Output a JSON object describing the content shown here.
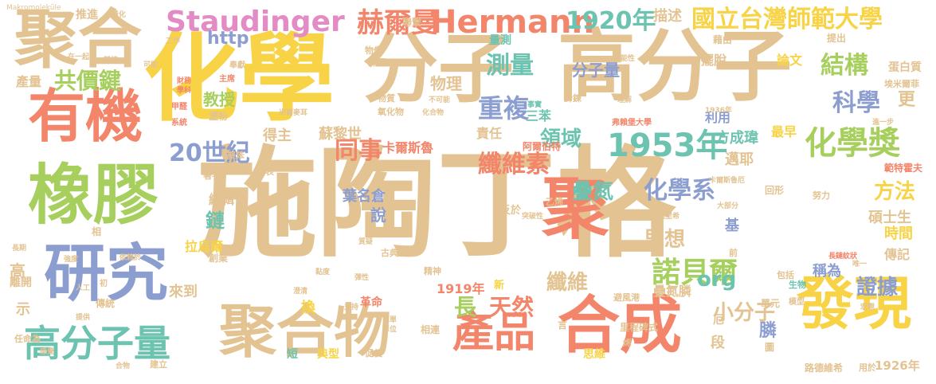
{
  "palette": {
    "tan": "#e3c392",
    "yellow": "#f7d345",
    "coral": "#f2856a",
    "green": "#a6cf5d",
    "blue": "#8c9ed0",
    "teal": "#6cc3b0",
    "pink": "#e38bc4",
    "gray": "#aaaaaa"
  },
  "words": [
    {
      "text": "施陶丁格",
      "color": "tan"
    },
    {
      "text": "化學",
      "color": "yellow"
    },
    {
      "text": "分子",
      "color": "tan"
    },
    {
      "text": "高分子",
      "color": "tan"
    },
    {
      "text": "聚合",
      "color": "tan"
    },
    {
      "text": "有機",
      "color": "coral"
    },
    {
      "text": "橡膠",
      "color": "green"
    },
    {
      "text": "研究",
      "color": "blue"
    },
    {
      "text": "聚",
      "color": "coral"
    },
    {
      "text": "高分子量",
      "color": "teal"
    },
    {
      "text": "聚合物",
      "color": "tan"
    },
    {
      "text": "合成",
      "color": "coral"
    },
    {
      "text": "發現",
      "color": "yellow"
    },
    {
      "text": "產品",
      "color": "coral"
    },
    {
      "text": "Staudinger",
      "color": "pink"
    },
    {
      "text": "赫爾曼",
      "color": "coral"
    },
    {
      "text": "Hermann",
      "color": "coral"
    },
    {
      "text": "1920年",
      "color": "teal"
    },
    {
      "text": "國立台灣師範大學",
      "color": "yellow"
    },
    {
      "text": "1953年",
      "color": "teal"
    },
    {
      "text": "化學獎",
      "color": "green"
    },
    {
      "text": "結構",
      "color": "green"
    },
    {
      "text": "科學",
      "color": "blue"
    },
    {
      "text": "諾貝爾",
      "color": "green"
    },
    {
      "text": "測量",
      "color": "teal"
    },
    {
      "text": "重複",
      "color": "blue"
    },
    {
      "text": "領域",
      "color": "teal"
    },
    {
      "text": "纖維素",
      "color": "coral"
    },
    {
      "text": "同事",
      "color": "coral"
    },
    {
      "text": "20世紀",
      "color": "blue"
    },
    {
      "text": "共價鍵",
      "color": "green"
    },
    {
      "text": "化學系",
      "color": "blue"
    },
    {
      "text": "疊氮",
      "color": "teal"
    },
    {
      "text": "思想",
      "color": "tan"
    },
    {
      "text": "天然",
      "color": "coral"
    },
    {
      "text": "長",
      "color": "green"
    },
    {
      "text": "小分子",
      "color": "tan"
    },
    {
      "text": "證據",
      "color": "blue"
    },
    {
      "text": "方法",
      "color": "yellow"
    },
    {
      "text": "org",
      "color": "teal"
    },
    {
      "text": "http",
      "color": "blue"
    },
    {
      "text": "描述",
      "color": "tan"
    },
    {
      "text": "物理",
      "color": "tan"
    },
    {
      "text": "分子量",
      "color": "blue"
    },
    {
      "text": "教授",
      "color": "green"
    },
    {
      "text": "產量",
      "color": "tan"
    },
    {
      "text": "推進",
      "color": "tan"
    },
    {
      "text": "得主",
      "color": "tan"
    },
    {
      "text": "蘇黎世",
      "color": "tan"
    },
    {
      "text": "責任",
      "color": "tan"
    },
    {
      "text": "卡爾斯魯",
      "color": "coral"
    },
    {
      "text": "三苯",
      "color": "teal"
    },
    {
      "text": "阿爾伯特",
      "color": "coral"
    },
    {
      "text": "方成瑋",
      "color": "teal"
    },
    {
      "text": "最早",
      "color": "yellow"
    },
    {
      "text": "邁耶",
      "color": "tan"
    },
    {
      "text": "利用",
      "color": "blue"
    },
    {
      "text": "更",
      "color": "tan"
    },
    {
      "text": "論文",
      "color": "yellow"
    },
    {
      "text": "擺脫",
      "color": "tan"
    },
    {
      "text": "蛋白質",
      "color": "tan"
    },
    {
      "text": "編輯",
      "color": "tan"
    },
    {
      "text": "鏈",
      "color": "teal"
    },
    {
      "text": "拉烏爾",
      "color": "yellow"
    },
    {
      "text": "葉名倉",
      "color": "blue"
    },
    {
      "text": "說",
      "color": "blue"
    },
    {
      "text": "基",
      "color": "blue"
    },
    {
      "text": "碩士生",
      "color": "tan"
    },
    {
      "text": "時間",
      "color": "yellow"
    },
    {
      "text": "傳記",
      "color": "tan"
    },
    {
      "text": "稱為",
      "color": "blue"
    },
    {
      "text": "纖維",
      "color": "tan"
    },
    {
      "text": "1919年",
      "color": "coral"
    },
    {
      "text": "疊氮膦",
      "color": "tan"
    },
    {
      "text": "來到",
      "color": "tan"
    },
    {
      "text": "高",
      "color": "tan"
    },
    {
      "text": "離開",
      "color": "tan"
    },
    {
      "text": "革命",
      "color": "coral"
    },
    {
      "text": "換",
      "color": "yellow"
    },
    {
      "text": "膦",
      "color": "blue"
    },
    {
      "text": "段",
      "color": "tan"
    },
    {
      "text": "典型",
      "color": "yellow"
    },
    {
      "text": "思維",
      "color": "yellow"
    },
    {
      "text": "路德維希",
      "color": "tan"
    },
    {
      "text": "1926年",
      "color": "tan"
    },
    {
      "text": "里程碑式",
      "color": "tan"
    },
    {
      "text": "聚苯",
      "color": "tan"
    },
    {
      "text": "發表",
      "color": "tan"
    },
    {
      "text": "氧化物",
      "color": "tan"
    },
    {
      "text": "物質",
      "color": "tan"
    },
    {
      "text": "物像",
      "color": "tan"
    },
    {
      "text": "課題",
      "color": "tan"
    },
    {
      "text": "瀝粉",
      "color": "tan"
    },
    {
      "text": "主席",
      "color": "coral"
    },
    {
      "text": "奉獻",
      "color": "tan"
    },
    {
      "text": "甲醛",
      "color": "coral"
    },
    {
      "text": "系統",
      "color": "coral"
    },
    {
      "text": "量測",
      "color": "teal"
    },
    {
      "text": "藉由",
      "color": "tan"
    },
    {
      "text": "提出",
      "color": "tan"
    },
    {
      "text": "埃米爾菲",
      "color": "tan"
    },
    {
      "text": "弗賴堡大學",
      "color": "coral"
    },
    {
      "text": "針鍊",
      "color": "tan"
    },
    {
      "text": "精神",
      "color": "tan"
    },
    {
      "text": "古典",
      "color": "tan"
    },
    {
      "text": "反於",
      "color": "tan"
    },
    {
      "text": "乙烯",
      "color": "tan"
    },
    {
      "text": "範特霍夫",
      "color": "coral"
    },
    {
      "text": "回形",
      "color": "tan"
    },
    {
      "text": "努力",
      "color": "tan"
    },
    {
      "text": "相連",
      "color": "tan"
    },
    {
      "text": "言",
      "color": "tan"
    },
    {
      "text": "避風港",
      "color": "tan"
    },
    {
      "text": "單元",
      "color": "tan"
    },
    {
      "text": "包括",
      "color": "tan"
    },
    {
      "text": "生物",
      "color": "teal"
    },
    {
      "text": "前",
      "color": "tan"
    },
    {
      "text": "圖",
      "color": "tan"
    },
    {
      "text": "模型",
      "color": "tan"
    },
    {
      "text": "厄",
      "color": "tan"
    },
    {
      "text": "傳統",
      "color": "tan"
    },
    {
      "text": "創業",
      "color": "tan"
    },
    {
      "text": "示",
      "color": "tan"
    },
    {
      "text": "任命為",
      "color": "tan"
    },
    {
      "text": "建立",
      "color": "tan"
    },
    {
      "text": "促使",
      "color": "tan"
    },
    {
      "text": "短",
      "color": "teal"
    },
    {
      "text": "烯",
      "color": "tan"
    },
    {
      "text": "用於",
      "color": "tan"
    },
    {
      "text": "著名",
      "color": "tan"
    },
    {
      "text": "相",
      "color": "tan"
    },
    {
      "text": "初",
      "color": "tan"
    },
    {
      "text": "新",
      "color": "yellow"
    },
    {
      "text": "聯繫",
      "color": "tan"
    },
    {
      "text": "Makromoleküle",
      "color": "tan"
    },
    {
      "text": "量化",
      "color": "tan"
    },
    {
      "text": "工作",
      "color": "tan"
    },
    {
      "text": "在一起",
      "color": "tan"
    },
    {
      "text": "鏈結",
      "color": "tan"
    },
    {
      "text": "可能",
      "color": "tan"
    },
    {
      "text": "學科",
      "color": "coral"
    },
    {
      "text": "財務",
      "color": "coral"
    },
    {
      "text": "米爾麥耳",
      "color": "tan"
    },
    {
      "text": "不可能",
      "color": "tan"
    },
    {
      "text": "事實",
      "color": "teal"
    },
    {
      "text": "可能性",
      "color": "tan"
    },
    {
      "text": "理解",
      "color": "tan"
    },
    {
      "text": "化合物",
      "color": "tan"
    },
    {
      "text": "1936年",
      "color": "tan"
    },
    {
      "text": "進一步",
      "color": "tan"
    },
    {
      "text": "卡爾斯魯厄",
      "color": "tan"
    },
    {
      "text": "金體和海因里希",
      "color": "tan"
    },
    {
      "text": "大部分",
      "color": "tan"
    },
    {
      "text": "突破性",
      "color": "tan"
    },
    {
      "text": "長鏈紋狀",
      "color": "coral"
    },
    {
      "text": "唯一",
      "color": "tan"
    },
    {
      "text": "宏觀",
      "color": "tan"
    },
    {
      "text": "黏度",
      "color": "tan"
    },
    {
      "text": "澄清",
      "color": "tan"
    },
    {
      "text": "支持",
      "color": "tan"
    },
    {
      "text": "質疑",
      "color": "tan"
    },
    {
      "text": "彈性",
      "color": "tan"
    },
    {
      "text": "簡單",
      "color": "tan"
    },
    {
      "text": "單位",
      "color": "tan"
    },
    {
      "text": "依賴於",
      "color": "tan"
    },
    {
      "text": "強度",
      "color": "tan"
    },
    {
      "text": "長期",
      "color": "tan"
    },
    {
      "text": "人工",
      "color": "tan"
    },
    {
      "text": "提供",
      "color": "tan"
    },
    {
      "text": "合物",
      "color": "tan"
    },
    {
      "text": "感覺",
      "color": "tan"
    }
  ]
}
